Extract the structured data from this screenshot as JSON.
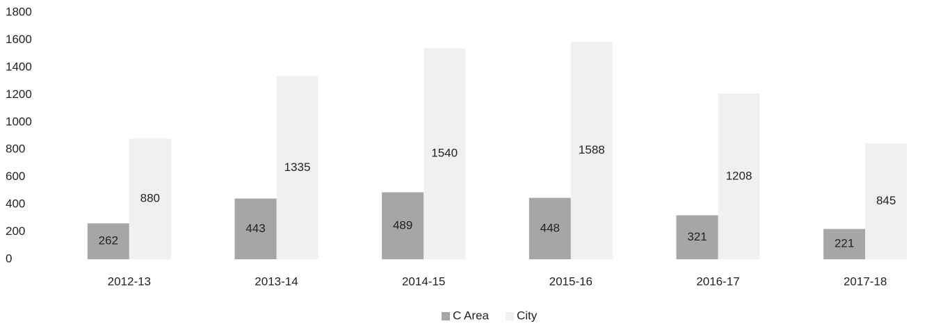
{
  "chart_data": {
    "type": "bar",
    "categories": [
      "2012-13",
      "2013-14",
      "2014-15",
      "2015-16",
      "2016-17",
      "2017-18"
    ],
    "series": [
      {
        "name": "C Area",
        "color": "#a6a6a6",
        "values": [
          262,
          443,
          489,
          448,
          321,
          221
        ]
      },
      {
        "name": "City",
        "color": "#f0f0f0",
        "values": [
          880,
          1335,
          1540,
          1588,
          1208,
          845
        ]
      }
    ],
    "ylim": [
      0,
      1800
    ],
    "yticks": [
      0,
      200,
      400,
      600,
      800,
      1000,
      1200,
      1400,
      1600,
      1800
    ],
    "grid": false,
    "legend": "bottom"
  }
}
